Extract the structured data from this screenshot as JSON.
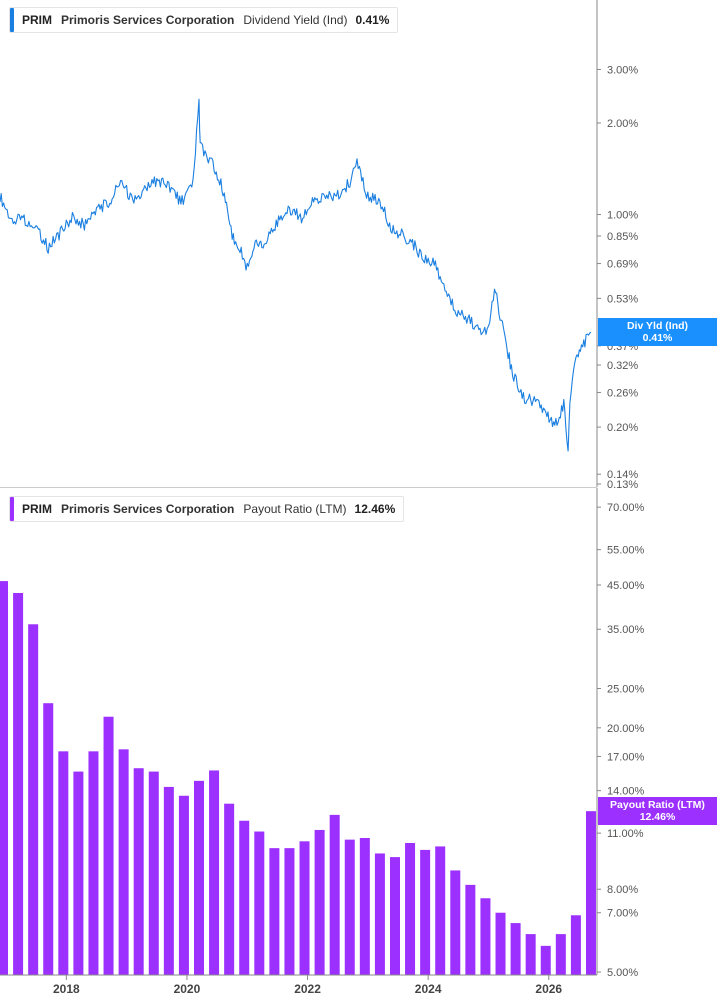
{
  "top_panel": {
    "legend": {
      "ticker": "PRIM",
      "company": "Primoris Services Corporation",
      "metric": "Dividend Yield (Ind)",
      "value": "0.41%"
    },
    "tag": {
      "label": "Div Yld (Ind)",
      "value": "0.41%"
    },
    "color": "#1a7fe0"
  },
  "bottom_panel": {
    "legend": {
      "ticker": "PRIM",
      "company": "Primoris Services Corporation",
      "metric": "Payout Ratio (LTM)",
      "value": "12.46%"
    },
    "tag": {
      "label": "Payout Ratio (LTM)",
      "value": "12.46%"
    },
    "color": "#9b30ff"
  },
  "chart_data": [
    {
      "type": "line",
      "scale": "log",
      "series": [
        {
          "name": "Dividend Yield (Ind)",
          "x": [
            2016.9,
            2017.1,
            2017.3,
            2017.5,
            2017.7,
            2017.9,
            2018.1,
            2018.3,
            2018.5,
            2018.7,
            2018.9,
            2019.1,
            2019.3,
            2019.5,
            2019.7,
            2019.9,
            2020.1,
            2020.2,
            2020.22,
            2020.3,
            2020.45,
            2020.6,
            2020.75,
            2020.9,
            2021.0,
            2021.15,
            2021.3,
            2021.5,
            2021.7,
            2021.9,
            2022.1,
            2022.3,
            2022.5,
            2022.7,
            2022.8,
            2023.0,
            2023.2,
            2023.4,
            2023.6,
            2023.8,
            2023.9,
            2024.1,
            2024.3,
            2024.5,
            2024.7,
            2024.9,
            2025.0,
            2025.1,
            2025.25,
            2025.4,
            2025.6,
            2025.8,
            2025.95,
            2026.1,
            2026.25,
            2026.32,
            2026.35,
            2026.45,
            2026.6,
            2026.7
          ],
          "values": [
            1.15,
            0.95,
            0.97,
            0.9,
            0.78,
            0.87,
            0.98,
            0.92,
            1.05,
            1.08,
            1.3,
            1.1,
            1.2,
            1.3,
            1.25,
            1.1,
            1.25,
            2.35,
            1.7,
            1.55,
            1.45,
            1.2,
            0.85,
            0.75,
            0.67,
            0.82,
            0.8,
            0.95,
            1.05,
            0.98,
            1.1,
            1.15,
            1.15,
            1.28,
            1.5,
            1.15,
            1.1,
            0.9,
            0.85,
            0.78,
            0.72,
            0.69,
            0.55,
            0.47,
            0.45,
            0.4,
            0.42,
            0.58,
            0.41,
            0.3,
            0.25,
            0.24,
            0.22,
            0.2,
            0.24,
            0.16,
            0.25,
            0.33,
            0.38,
            0.41
          ]
        }
      ],
      "xlim": [
        2016.9,
        2026.8
      ],
      "ylim": [
        0.13,
        4.2
      ],
      "y_ticks": [
        "3.00%",
        "2.00%",
        "1.00%",
        "0.85%",
        "0.69%",
        "0.53%",
        "0.37%",
        "0.32%",
        "0.26%",
        "0.20%",
        "0.14%",
        "0.13%"
      ],
      "y_tick_values": [
        3.0,
        2.0,
        1.0,
        0.85,
        0.69,
        0.53,
        0.37,
        0.32,
        0.26,
        0.2,
        0.14,
        0.13
      ]
    },
    {
      "type": "bar",
      "scale": "log",
      "series": [
        {
          "name": "Payout Ratio (LTM)",
          "x": [
            2016.95,
            2017.2,
            2017.45,
            2017.7,
            2017.95,
            2018.2,
            2018.45,
            2018.7,
            2018.95,
            2019.2,
            2019.45,
            2019.7,
            2019.95,
            2020.2,
            2020.45,
            2020.7,
            2020.95,
            2021.2,
            2021.45,
            2021.7,
            2021.95,
            2022.2,
            2022.45,
            2022.7,
            2022.95,
            2023.2,
            2023.45,
            2023.7,
            2023.95,
            2024.2,
            2024.45,
            2024.7,
            2024.95,
            2025.2,
            2025.45,
            2025.7,
            2025.95,
            2026.2,
            2026.45,
            2026.7
          ],
          "values": [
            46,
            43,
            36,
            23,
            17.5,
            15.6,
            17.5,
            21.3,
            17.7,
            15.9,
            15.6,
            14.3,
            13.6,
            14.8,
            15.7,
            13,
            11.8,
            11.1,
            10.1,
            10.1,
            10.5,
            11.2,
            12.2,
            10.6,
            10.7,
            9.8,
            9.6,
            10.4,
            10,
            10.2,
            8.9,
            8.2,
            7.6,
            7,
            6.6,
            6.2,
            5.8,
            6.2,
            6.9,
            12.46
          ]
        }
      ],
      "xlim": [
        2016.9,
        2026.8
      ],
      "ylim": [
        5.0,
        75.0
      ],
      "y_ticks": [
        "70.00%",
        "55.00%",
        "45.00%",
        "35.00%",
        "25.00%",
        "20.00%",
        "17.00%",
        "14.00%",
        "11.00%",
        "8.00%",
        "7.00%",
        "5.00%"
      ],
      "y_tick_values": [
        70,
        55,
        45,
        35,
        25,
        20,
        17,
        14,
        11,
        8,
        7,
        5
      ]
    }
  ],
  "x_axis": {
    "labels": [
      "2018",
      "2020",
      "2022",
      "2024",
      "2026"
    ],
    "values": [
      2018,
      2020,
      2022,
      2024,
      2026
    ]
  },
  "colors": {
    "axis": "#888888",
    "tick_text": "#444444",
    "separator": "#cccccc",
    "grid_text": "#555555"
  }
}
